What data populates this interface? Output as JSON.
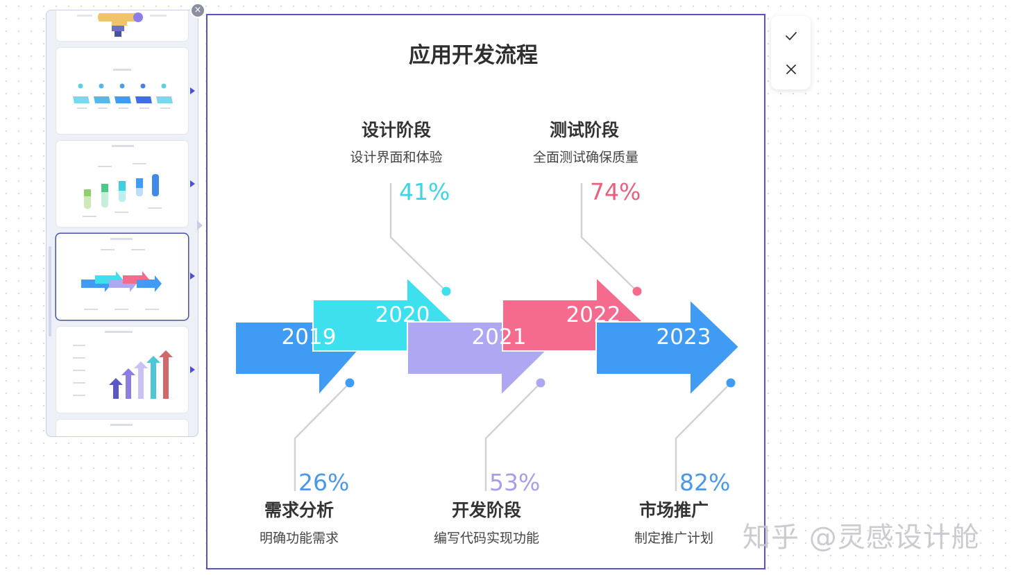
{
  "diagram": {
    "title": "应用开发流程",
    "colors": {
      "blue": "#3f9bf3",
      "cyan": "#3ee0ee",
      "lavender": "#aea8f2",
      "pink": "#f56b8e",
      "blue2": "#3f9bf3"
    },
    "years": [
      "2019",
      "2020",
      "2021",
      "2022",
      "2023"
    ],
    "top_stages": [
      {
        "title": "设计阶段",
        "desc": "设计界面和体验",
        "percent": "41%",
        "color": "#3ad6e8"
      },
      {
        "title": "测试阶段",
        "desc": "全面测试确保质量",
        "percent": "74%",
        "color": "#e9607f"
      }
    ],
    "bottom_stages": [
      {
        "title": "需求分析",
        "desc": "明确功能需求",
        "percent": "26%",
        "color": "#4a98ea"
      },
      {
        "title": "开发阶段",
        "desc": "编写代码实现功能",
        "percent": "53%",
        "color": "#a99cef"
      },
      {
        "title": "市场推广",
        "desc": "制定推广计划",
        "percent": "82%",
        "color": "#4a98ea"
      }
    ]
  },
  "toolbar": {
    "confirm_icon": "check-icon",
    "cancel_icon": "close-icon"
  },
  "panel": {
    "close_icon": "close-icon"
  },
  "watermark": "知乎 @灵感设计舱"
}
